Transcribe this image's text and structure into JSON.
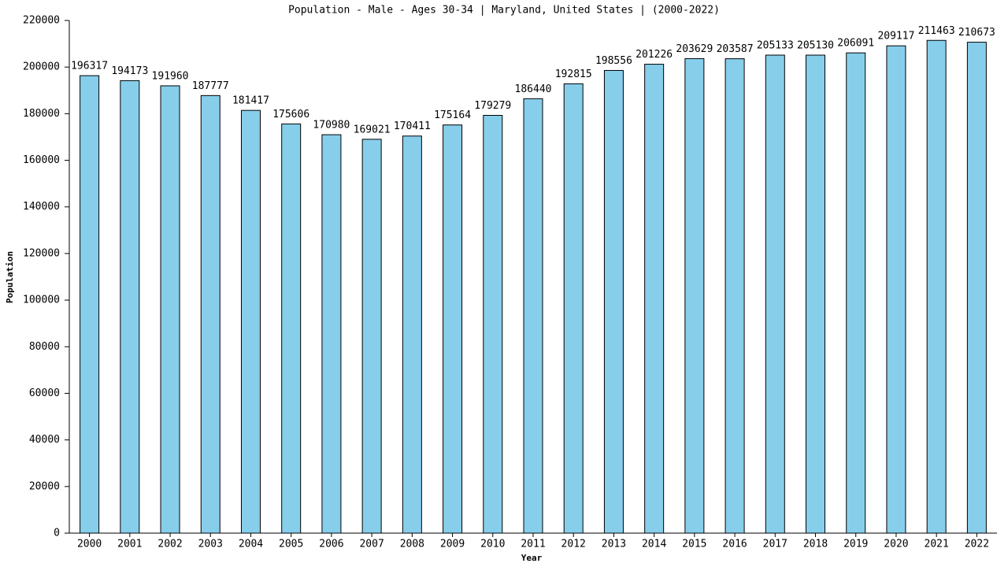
{
  "chart_data": {
    "type": "bar",
    "title": "Population - Male - Ages 30-34 | Maryland, United States |  (2000-2022)",
    "x_label": "Year",
    "y_label": "Population",
    "categories": [
      "2000",
      "2001",
      "2002",
      "2003",
      "2004",
      "2005",
      "2006",
      "2007",
      "2008",
      "2009",
      "2010",
      "2011",
      "2012",
      "2013",
      "2014",
      "2015",
      "2016",
      "2017",
      "2018",
      "2019",
      "2020",
      "2021",
      "2022"
    ],
    "values": [
      196317,
      194173,
      191960,
      187777,
      181417,
      175606,
      170980,
      169021,
      170411,
      175164,
      179279,
      186440,
      192815,
      198556,
      201226,
      203629,
      203587,
      205133,
      205130,
      206091,
      209117,
      211463,
      210673
    ],
    "color": "#87ceeb",
    "ylim": [
      0,
      220000
    ],
    "yticks": [
      0,
      20000,
      40000,
      60000,
      80000,
      100000,
      120000,
      140000,
      160000,
      180000,
      200000,
      220000
    ],
    "grid": false
  }
}
